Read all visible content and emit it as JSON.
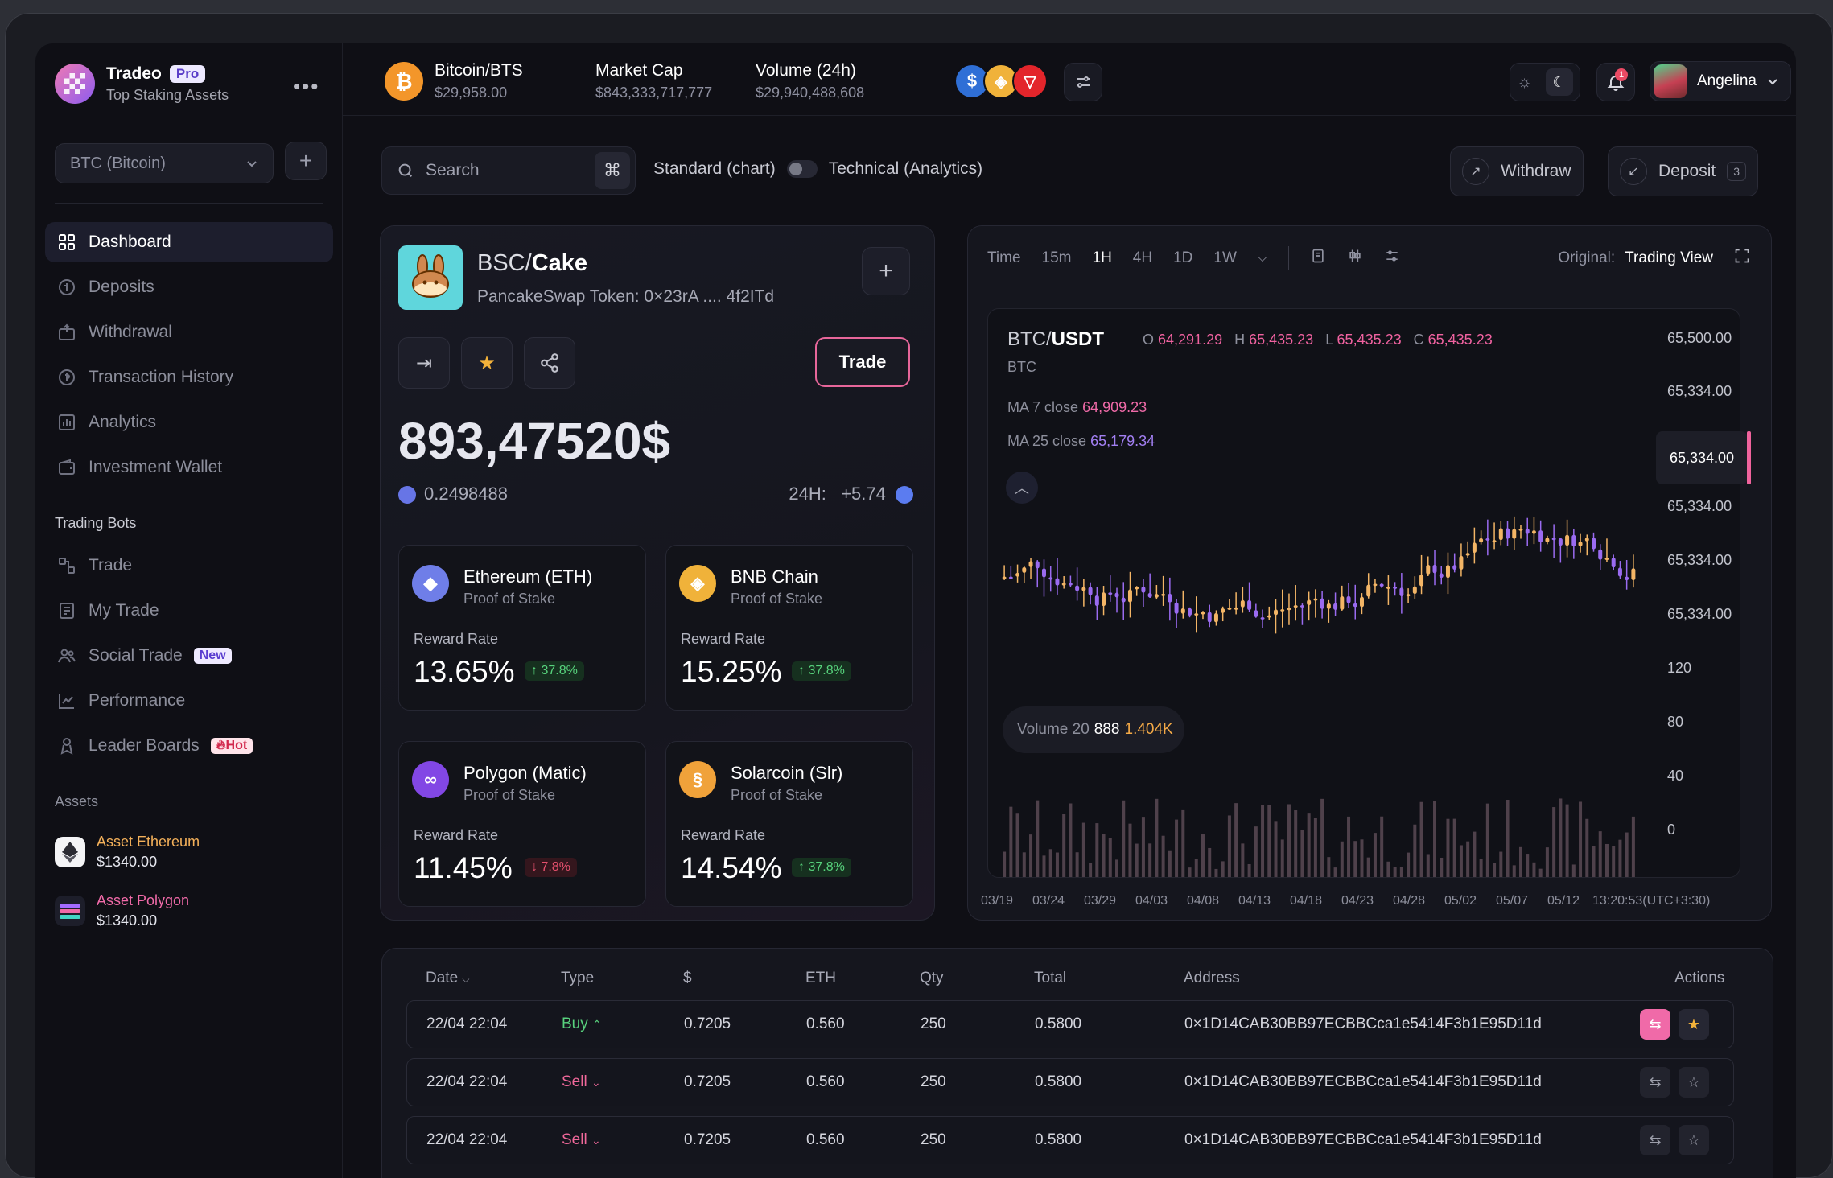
{
  "brand": {
    "name": "Tradeo",
    "badge": "Pro",
    "subtitle": "Top Staking Assets"
  },
  "sidebar": {
    "coin_select": "BTC (Bitcoin)",
    "nav": [
      {
        "label": "Dashboard",
        "icon": "dashboard-icon",
        "active": true
      },
      {
        "label": "Deposits",
        "icon": "deposit-icon"
      },
      {
        "label": "Withdrawal",
        "icon": "withdrawal-icon"
      },
      {
        "label": "Transaction History",
        "icon": "history-icon"
      },
      {
        "label": "Analytics",
        "icon": "analytics-icon"
      },
      {
        "label": "Investment Wallet",
        "icon": "wallet-icon"
      }
    ],
    "bots_title": "Trading Bots",
    "bots": [
      {
        "label": "Trade",
        "icon": "trade-icon"
      },
      {
        "label": "My Trade",
        "icon": "my-trade-icon"
      },
      {
        "label": "Social Trade",
        "icon": "social-icon",
        "badge": "New"
      },
      {
        "label": "Performance",
        "icon": "performance-icon"
      },
      {
        "label": "Leader Boards",
        "icon": "leaderboard-icon",
        "badge": "Hot"
      }
    ],
    "assets_title": "Assets",
    "assets": [
      {
        "name": "Asset Ethereum",
        "value": "$1340.00",
        "color": "#f3b05a"
      },
      {
        "name": "Asset Polygon",
        "value": "$1340.00",
        "color": "#f06aa8"
      }
    ]
  },
  "topbar": {
    "pair_label": "Bitcoin/BTS",
    "pair_value": "$29,958.00",
    "market_cap_label": "Market Cap",
    "market_cap_value": "$843,333,717,777",
    "volume_label": "Volume (24h)",
    "volume_value": "$29,940,488,608",
    "notifications": "1",
    "user": "Angelina"
  },
  "toolbar": {
    "search_placeholder": "Search",
    "kbd": "⌘",
    "mode_left": "Standard (chart)",
    "mode_right": "Technical (Analytics)",
    "withdraw": "Withdraw",
    "deposit": "Deposit",
    "deposit_count": "3"
  },
  "token": {
    "pair_prefix": "BSC/",
    "pair_name": "Cake",
    "subtitle": "PancakeSwap Token: 0×23rA .... 4f2ITd",
    "trade": "Trade",
    "price": "893,47520$",
    "amount": "0.2498488",
    "change_label": "24H:",
    "change_value": "+5.74"
  },
  "staking": [
    {
      "name": "Ethereum (ETH)",
      "type": "Proof of Stake",
      "rate_label": "Reward Rate",
      "rate": "13.65%",
      "change": "↑ 37.8%",
      "dir": "up",
      "color": "#6f7ee8"
    },
    {
      "name": "BNB Chain",
      "type": "Proof of Stake",
      "rate_label": "Reward Rate",
      "rate": "15.25%",
      "change": "↑ 37.8%",
      "dir": "up",
      "color": "#f0b23a"
    },
    {
      "name": "Polygon (Matic)",
      "type": "Proof of Stake",
      "rate_label": "Reward Rate",
      "rate": "11.45%",
      "change": "↓ 7.8%",
      "dir": "down",
      "color": "#8247e5"
    },
    {
      "name": "Solarcoin (Slr)",
      "type": "Proof of Stake",
      "rate_label": "Reward Rate",
      "rate": "14.54%",
      "change": "↑ 37.8%",
      "dir": "up",
      "color": "#f0a23a"
    }
  ],
  "chart_toolbar": {
    "time": "Time",
    "frames": [
      "15m",
      "1H",
      "4H",
      "1D",
      "1W"
    ],
    "active": "1H",
    "original_label": "Original:",
    "original_value": "Trading View"
  },
  "chart_data": {
    "type": "candlestick",
    "pair_base": "BTC/",
    "pair_quote": "USDT",
    "base_label": "BTC",
    "ohlc": {
      "O": "64,291.29",
      "H": "65,435.23",
      "L": "65,435.23",
      "C": "65,435.23"
    },
    "ma7_label": "MA 7 close",
    "ma7_value": "64,909.23",
    "ma25_label": "MA 25 close",
    "ma25_value": "65,179.34",
    "volume_label": "Volume 20",
    "volume_a": "888",
    "volume_b": "1.404K",
    "y_ticks": [
      "65,500.00",
      "65,334.00",
      "65,334.00",
      "65,334.00",
      "65,334.00",
      "120",
      "80",
      "40",
      "0"
    ],
    "current_price": "65,334.00",
    "x_ticks": [
      "03/19",
      "03/24",
      "03/29",
      "04/03",
      "04/08",
      "04/13",
      "04/18",
      "04/23",
      "04/28",
      "05/02",
      "05/07",
      "05/12",
      "13:20:53(UTC+3:30)"
    ],
    "up_color": "#f3b566",
    "down_color": "#9a6bf0"
  },
  "table": {
    "headers": [
      "Date",
      "Type",
      "$",
      "ETH",
      "Qty",
      "Total",
      "Address",
      "Actions"
    ],
    "rows": [
      {
        "date": "22/04 22:04",
        "type": "Buy",
        "price": "0.7205",
        "eth": "0.560",
        "qty": "250",
        "total": "0.5800",
        "address": "0×1D14CAB30BB97ECBBCca1e5414F3b1E95D11d"
      },
      {
        "date": "22/04 22:04",
        "type": "Sell",
        "price": "0.7205",
        "eth": "0.560",
        "qty": "250",
        "total": "0.5800",
        "address": "0×1D14CAB30BB97ECBBCca1e5414F3b1E95D11d"
      },
      {
        "date": "22/04 22:04",
        "type": "Sell",
        "price": "0.7205",
        "eth": "0.560",
        "qty": "250",
        "total": "0.5800",
        "address": "0×1D14CAB30BB97ECBBCca1e5414F3b1E95D11d"
      }
    ]
  }
}
